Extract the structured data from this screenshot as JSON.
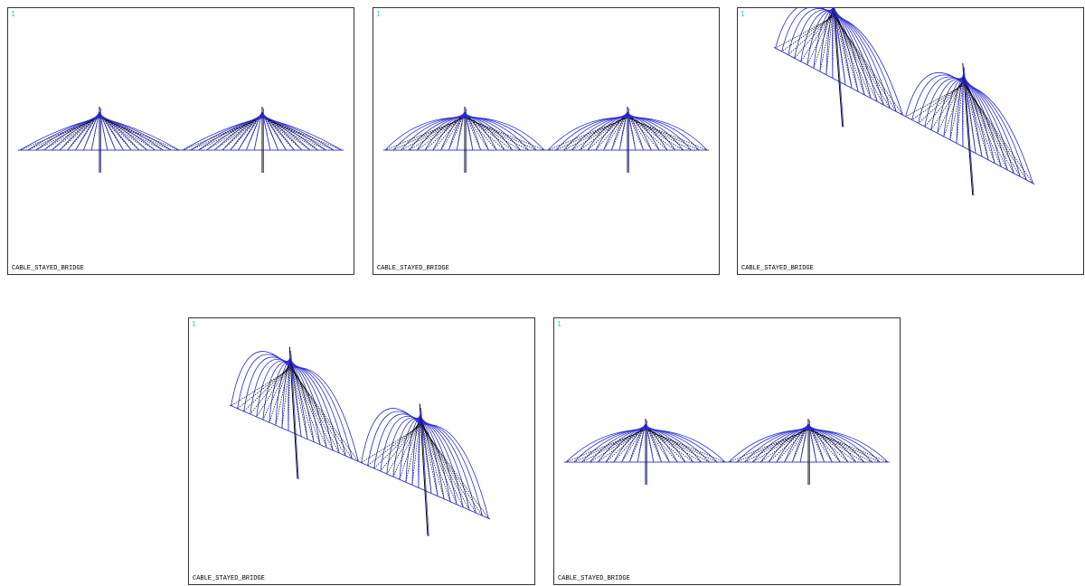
{
  "panels": [
    {
      "number": "1",
      "caption": "CABLE_STAYED_BRIDGE"
    },
    {
      "number": "1",
      "caption": "CABLE_STAYED_BRIDGE"
    },
    {
      "number": "1",
      "caption": "CABLE_STAYED_BRIDGE"
    },
    {
      "number": "1",
      "caption": "CABLE_STAYED_BRIDGE"
    },
    {
      "number": "1",
      "caption": "CABLE_STAYED_BRIDGE"
    }
  ]
}
